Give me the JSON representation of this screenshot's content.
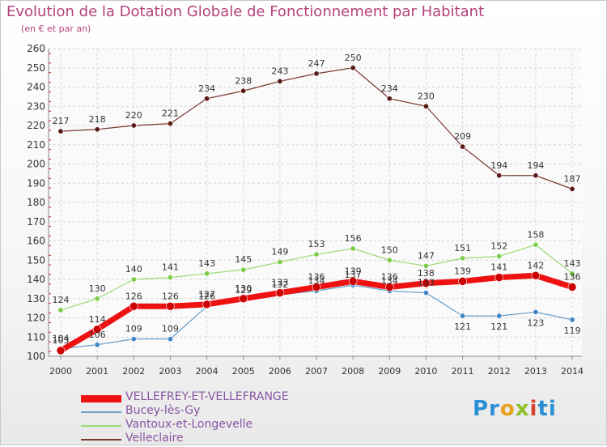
{
  "chart_data": {
    "type": "line",
    "title": "Evolution de la Dotation Globale de Fonctionnement par Habitant",
    "subtitle": "(en € et par an)",
    "x": [
      "2000",
      "2001",
      "2002",
      "2003",
      "2004",
      "2005",
      "2006",
      "2007",
      "2008",
      "2009",
      "2010",
      "2011",
      "2012",
      "2013",
      "2014"
    ],
    "ylim": [
      100,
      260
    ],
    "yticks": [
      "100",
      "110",
      "120",
      "130",
      "140",
      "150",
      "160",
      "170",
      "180",
      "190",
      "200",
      "210",
      "220",
      "230",
      "240",
      "250",
      "260"
    ],
    "grid": true,
    "legend_position": "bottom-left",
    "series": [
      {
        "name": "VELLEFREY-ET-VELLEFRANGE",
        "color": "#ee1111",
        "marker_color": "#cc0000",
        "width": 7,
        "values": [
          103,
          114,
          126,
          126,
          127,
          130,
          133,
          136,
          139,
          136,
          138,
          139,
          141,
          142,
          136
        ],
        "labels": [
          "103",
          "114",
          "126",
          "126",
          "127",
          "130",
          "133",
          "136",
          "139",
          "136",
          "138",
          "139",
          "141",
          "142",
          "136"
        ]
      },
      {
        "name": "Bucey-lès-Gy",
        "color": "#6a9fcb",
        "marker_color": "#3f86c4",
        "width": 1.2,
        "values": [
          104,
          106,
          109,
          109,
          126,
          129,
          132,
          134,
          137,
          134,
          133,
          121,
          121,
          123,
          119
        ],
        "labels": [
          "104",
          "106",
          "109",
          "109",
          "126",
          "129",
          "132",
          "134",
          "137",
          "134",
          "133",
          "121",
          "121",
          "123",
          "119"
        ]
      },
      {
        "name": "Vantoux-et-Longevelle",
        "color": "#9cdb78",
        "marker_color": "#7ccd4a",
        "width": 1.2,
        "values": [
          124,
          130,
          140,
          141,
          143,
          145,
          149,
          153,
          156,
          150,
          147,
          151,
          152,
          158,
          143
        ],
        "labels": [
          "124",
          "130",
          "140",
          "141",
          "143",
          "145",
          "149",
          "153",
          "156",
          "150",
          "147",
          "151",
          "152",
          "158",
          "143"
        ]
      },
      {
        "name": "Velleclaire",
        "color": "#7a3a34",
        "marker_color": "#5a1a16",
        "width": 1.2,
        "values": [
          217,
          218,
          220,
          221,
          234,
          238,
          243,
          247,
          250,
          234,
          230,
          209,
          194,
          194,
          187
        ],
        "labels": [
          "217",
          "218",
          "220",
          "221",
          "234",
          "238",
          "243",
          "247",
          "250",
          "234",
          "230",
          "209",
          "194",
          "194",
          "187"
        ]
      }
    ]
  },
  "legend": {
    "items": [
      {
        "label": "VELLEFREY-ET-VELLEFRANGE",
        "color": "#ee1111",
        "thickness": 9
      },
      {
        "label": "Bucey-lès-Gy",
        "color": "#6a9fcb",
        "thickness": 2
      },
      {
        "label": "Vantoux-et-Longevelle",
        "color": "#9cdb78",
        "thickness": 2
      },
      {
        "label": "Velleclaire",
        "color": "#7a3a34",
        "thickness": 2
      }
    ]
  },
  "logo": {
    "p1": "Pr",
    "p2": "o",
    "p3": "x",
    "p4": "i",
    "p5": "ti"
  }
}
